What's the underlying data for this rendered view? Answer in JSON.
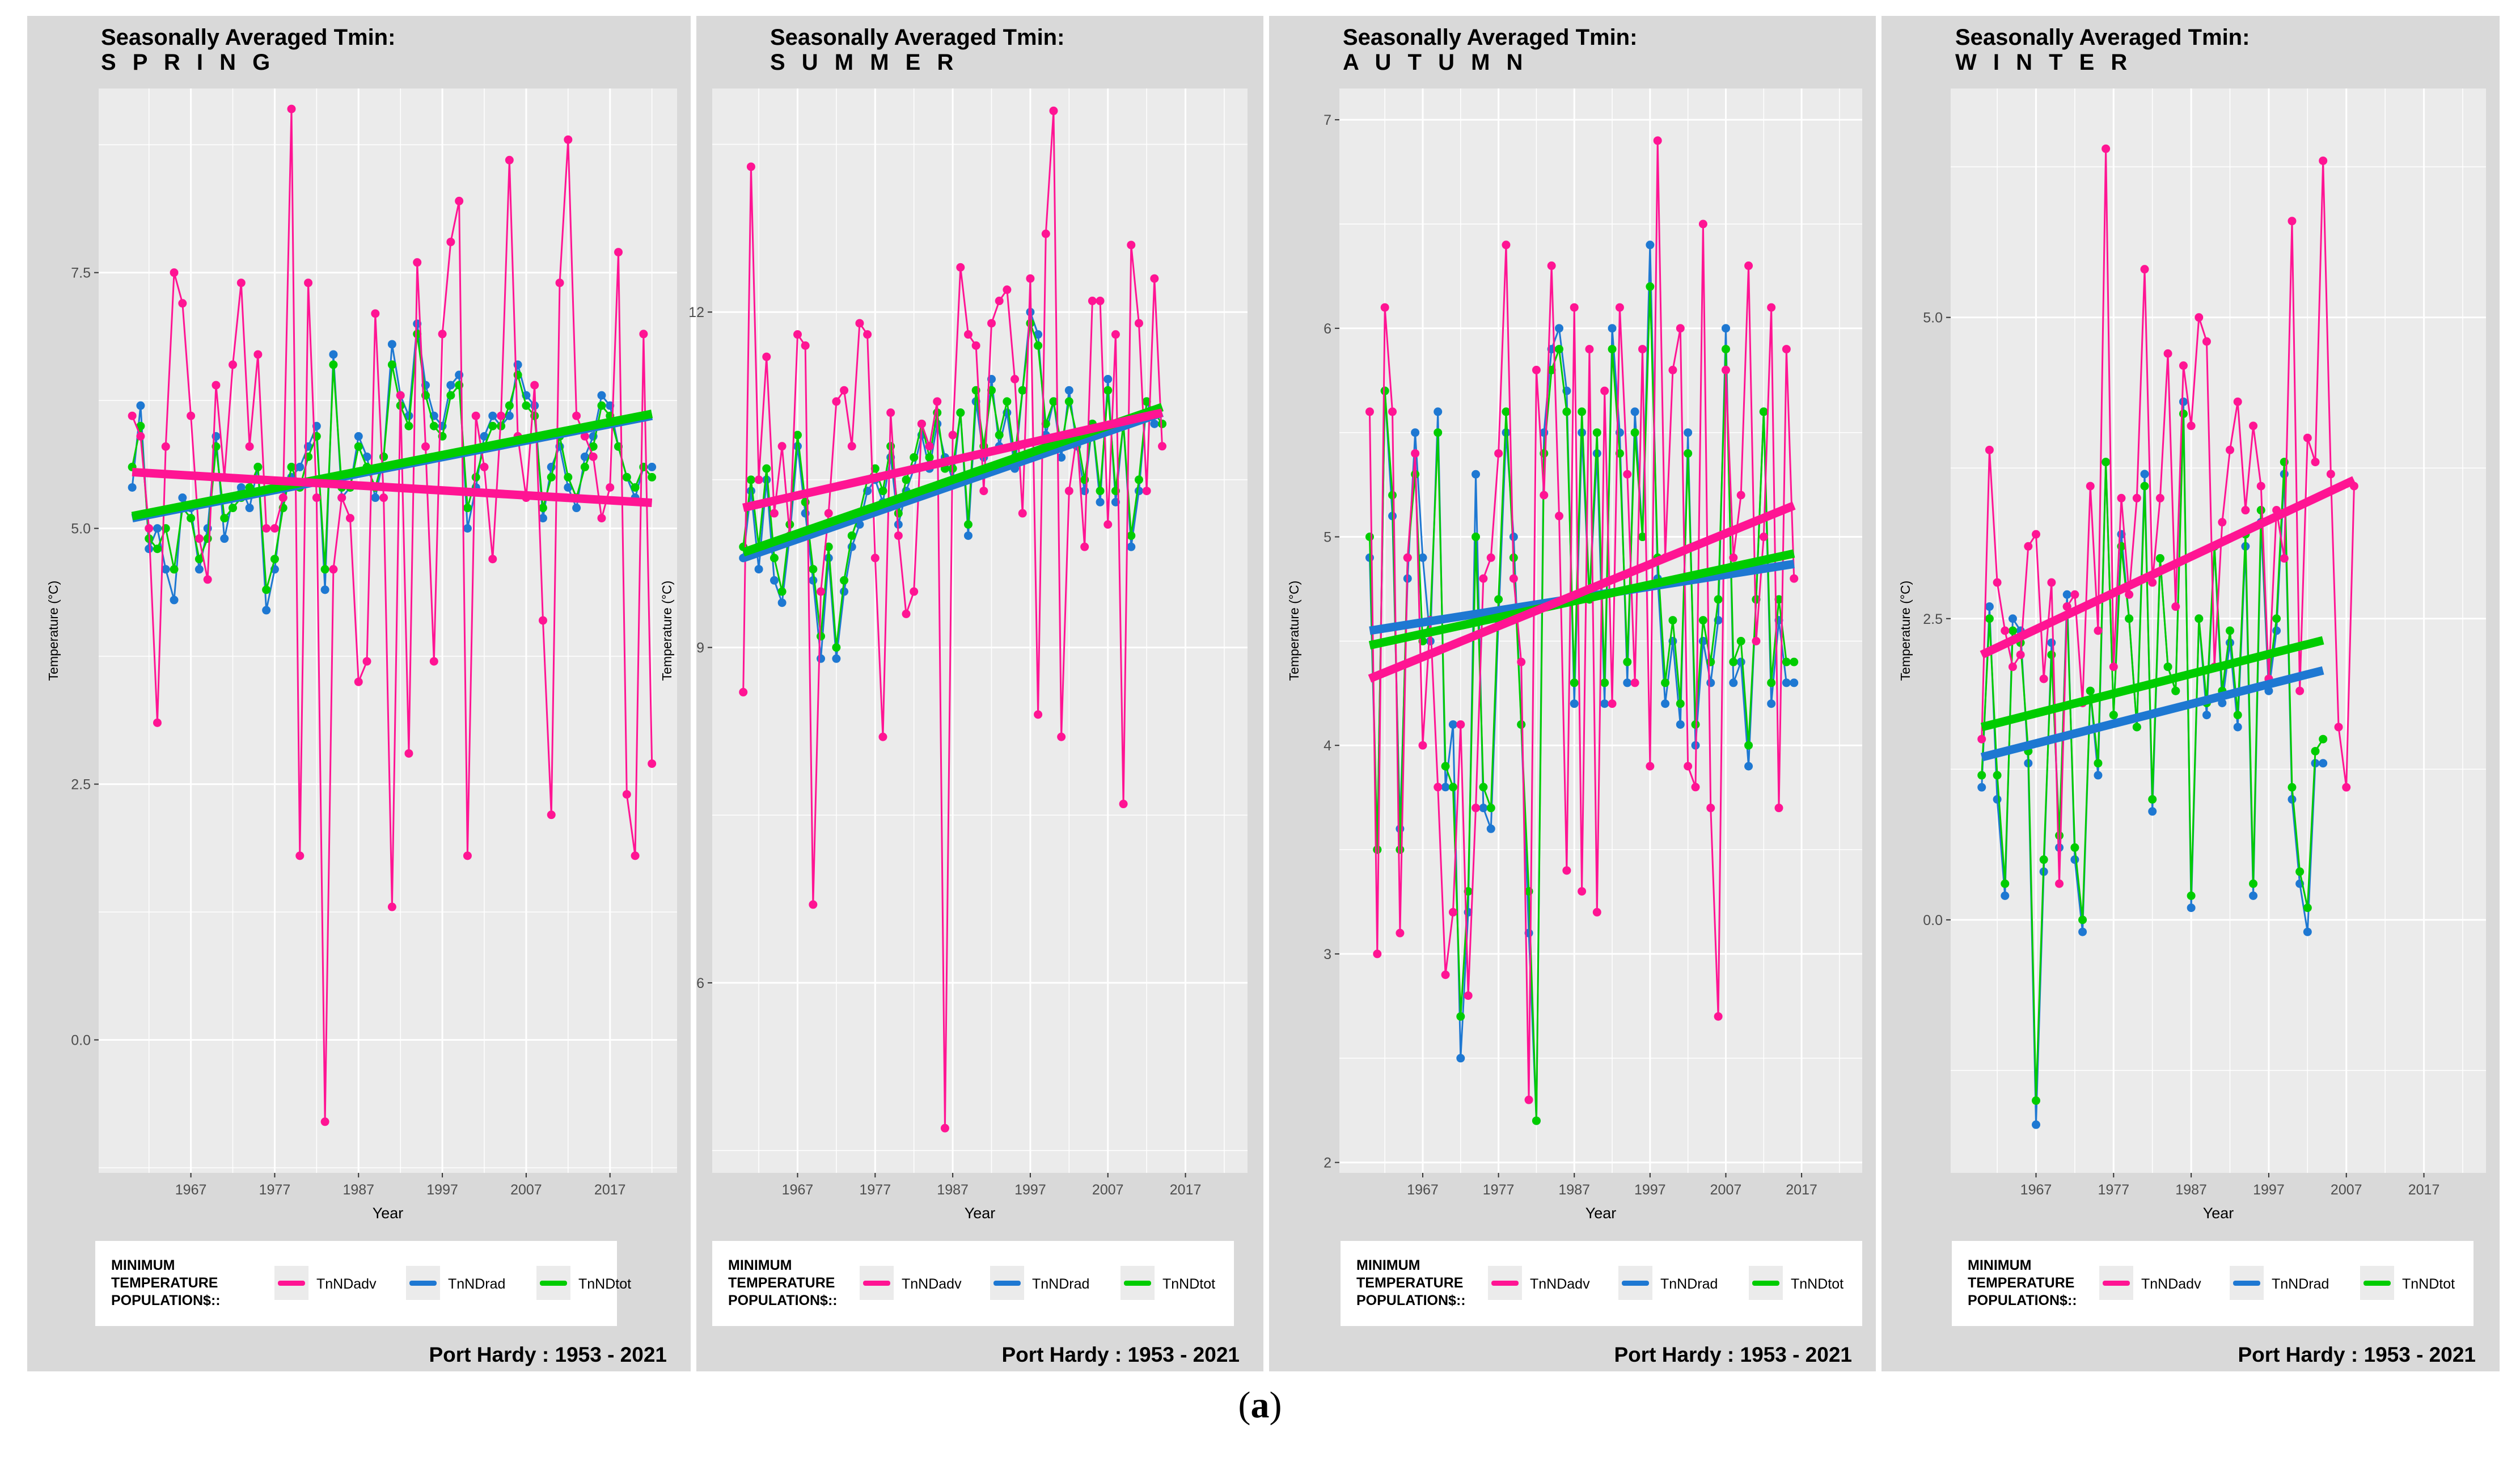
{
  "figure": {
    "sublabel_open": "(",
    "sublabel_letter": "a",
    "sublabel_close": ")"
  },
  "colors": {
    "advective": "#ff1493",
    "radiative": "#1e78d2",
    "total": "#00cc00"
  },
  "legend": {
    "title_lines": [
      "MINIMUM",
      "TEMPERATURE",
      "POPULATION$::"
    ],
    "entries": [
      "TnNDadv",
      "TnNDrad",
      "TnNDtot"
    ]
  },
  "chart_data": [
    {
      "type": "line",
      "title": "Seasonally Averaged Tmin:",
      "season": "S P R I N G",
      "xlabel": "Year",
      "ylabel": "Temperature (°C)",
      "caption": "Port Hardy :  1953 - 2021",
      "xlim": [
        1956,
        2025
      ],
      "ylim": [
        -1.3,
        9.3
      ],
      "x_ticks": [
        "1967",
        "1977",
        "1987",
        "1997",
        "2007",
        "2017"
      ],
      "y_ticks": [
        "0.0",
        "2.5",
        "5.0",
        "7.5"
      ],
      "x_start": 1960,
      "grid": true,
      "series": [
        {
          "name": "TnNDadv",
          "values": [
            6.1,
            5.9,
            5.0,
            3.1,
            5.8,
            7.5,
            7.2,
            6.1,
            4.9,
            4.5,
            6.4,
            5.5,
            6.6,
            7.4,
            5.8,
            6.7,
            5.0,
            5.0,
            5.3,
            9.1,
            1.8,
            7.4,
            5.3,
            -0.8,
            4.6,
            5.3,
            5.1,
            3.5,
            3.7,
            7.1,
            5.3,
            1.3,
            6.3,
            2.8,
            7.6,
            5.8,
            3.7,
            6.9,
            7.8,
            8.2,
            1.8,
            6.1,
            5.6,
            4.7,
            6.1,
            8.6,
            5.9,
            5.3,
            6.4,
            4.1,
            2.2,
            7.4,
            8.8,
            6.1,
            5.9,
            5.7,
            5.1,
            5.4,
            7.7,
            2.4,
            1.8,
            6.9,
            2.7
          ],
          "trend": [
            5.55,
            5.25
          ]
        },
        {
          "name": "TnNDrad",
          "values": [
            5.4,
            6.2,
            4.8,
            5.0,
            4.6,
            4.3,
            5.3,
            5.2,
            4.6,
            5.0,
            5.9,
            4.9,
            5.3,
            5.4,
            5.2,
            5.6,
            4.2,
            4.6,
            5.3,
            5.5,
            5.6,
            5.8,
            6.0,
            4.4,
            6.7,
            5.3,
            5.4,
            5.9,
            5.7,
            5.3,
            5.7,
            6.8,
            6.3,
            6.1,
            7.0,
            6.4,
            6.1,
            6.0,
            6.4,
            6.5,
            5.0,
            5.4,
            5.9,
            6.1,
            6.0,
            6.1,
            6.6,
            6.3,
            6.2,
            5.1,
            5.6,
            5.8,
            5.4,
            5.2,
            5.7,
            5.9,
            6.3,
            6.2,
            5.8,
            5.5,
            5.3,
            5.6,
            5.6
          ],
          "trend": [
            5.1,
            6.1
          ]
        },
        {
          "name": "TnNDtot",
          "values": [
            5.6,
            6.0,
            4.9,
            4.8,
            5.0,
            4.6,
            5.2,
            5.1,
            4.7,
            4.9,
            5.8,
            5.1,
            5.2,
            5.3,
            5.4,
            5.6,
            4.4,
            4.7,
            5.2,
            5.6,
            5.4,
            5.7,
            5.9,
            4.6,
            6.6,
            5.4,
            5.4,
            5.8,
            5.6,
            5.4,
            5.7,
            6.6,
            6.2,
            6.0,
            6.9,
            6.3,
            6.0,
            5.9,
            6.3,
            6.4,
            5.2,
            5.5,
            5.8,
            6.0,
            6.0,
            6.2,
            6.5,
            6.2,
            6.1,
            5.2,
            5.5,
            5.9,
            5.5,
            5.3,
            5.6,
            5.8,
            6.2,
            6.1,
            5.8,
            5.5,
            5.4,
            5.6,
            5.5
          ],
          "trend": [
            5.12,
            6.12
          ]
        }
      ]
    },
    {
      "type": "line",
      "title": "Seasonally Averaged Tmin:",
      "season": "S U M M E R",
      "xlabel": "Year",
      "ylabel": "Temperature (°C)",
      "caption": "Port Hardy :  1953 - 2021",
      "xlim": [
        1956,
        2025
      ],
      "ylim": [
        4.3,
        14.0
      ],
      "x_ticks": [
        "1967",
        "1977",
        "1987",
        "1997",
        "2007",
        "2017"
      ],
      "y_ticks": [
        "6",
        "9",
        "12"
      ],
      "x_start": 1960,
      "grid": true,
      "series": [
        {
          "name": "TnNDadv",
          "values": [
            8.6,
            13.3,
            10.5,
            11.6,
            10.2,
            10.8,
            10.0,
            11.8,
            11.7,
            6.7,
            9.5,
            10.2,
            11.2,
            11.3,
            10.8,
            11.9,
            11.8,
            9.8,
            8.2,
            11.1,
            10.0,
            9.3,
            9.5,
            11.0,
            10.8,
            11.2,
            4.7,
            10.9,
            12.4,
            11.8,
            11.7,
            10.4,
            11.9,
            12.1,
            12.2,
            11.4,
            10.2,
            12.3,
            8.4,
            12.7,
            13.8,
            8.2,
            10.4,
            10.9,
            9.9,
            12.1,
            12.1,
            10.1,
            11.8,
            7.6,
            12.6,
            11.9,
            10.4,
            12.3,
            10.8
          ],
          "trend": [
            10.25,
            11.1
          ]
        },
        {
          "name": "TnNDrad",
          "values": [
            9.8,
            10.4,
            9.7,
            10.5,
            9.6,
            9.4,
            10.0,
            10.8,
            10.2,
            9.6,
            8.9,
            9.8,
            8.9,
            9.5,
            9.9,
            10.1,
            10.4,
            10.5,
            10.3,
            10.7,
            10.1,
            10.4,
            10.6,
            10.9,
            10.6,
            11.0,
            10.7,
            10.5,
            11.1,
            10.0,
            11.2,
            10.7,
            11.4,
            10.8,
            11.1,
            10.6,
            11.3,
            12.0,
            11.8,
            10.9,
            11.2,
            10.7,
            11.3,
            10.8,
            10.4,
            11.0,
            10.3,
            11.4,
            10.3,
            11.0,
            9.9,
            10.4,
            11.2,
            11.0,
            11.0
          ],
          "trend": [
            9.8,
            11.1
          ]
        },
        {
          "name": "TnNDtot",
          "values": [
            9.9,
            10.5,
            9.9,
            10.6,
            9.8,
            9.5,
            10.1,
            10.9,
            10.3,
            9.7,
            9.1,
            9.9,
            9.0,
            9.6,
            10.0,
            10.2,
            10.5,
            10.6,
            10.4,
            10.8,
            10.2,
            10.5,
            10.7,
            11.0,
            10.7,
            11.1,
            10.6,
            10.6,
            11.1,
            10.1,
            11.3,
            10.8,
            11.3,
            10.9,
            11.2,
            10.7,
            11.3,
            11.9,
            11.7,
            11.0,
            11.2,
            10.8,
            11.2,
            10.9,
            10.5,
            11.0,
            10.4,
            11.3,
            10.4,
            11.0,
            10.0,
            10.5,
            11.2,
            11.1,
            11.0
          ],
          "trend": [
            9.85,
            11.15
          ]
        }
      ]
    },
    {
      "type": "line",
      "title": "Seasonally Averaged Tmin:",
      "season": "A U T U M N",
      "xlabel": "Year",
      "ylabel": "Temperature (°C)",
      "caption": "Port Hardy :  1953 - 2021",
      "xlim": [
        1956,
        2025
      ],
      "ylim": [
        1.95,
        7.15
      ],
      "x_ticks": [
        "1967",
        "1977",
        "1987",
        "1997",
        "2007",
        "2017"
      ],
      "y_ticks": [
        "2",
        "3",
        "4",
        "5",
        "6",
        "7"
      ],
      "x_start": 1960,
      "grid": true,
      "series": [
        {
          "name": "TnNDadv",
          "values": [
            5.6,
            3.0,
            6.1,
            5.6,
            3.1,
            4.9,
            5.4,
            4.0,
            4.6,
            3.8,
            2.9,
            3.2,
            4.1,
            2.8,
            3.7,
            4.8,
            4.9,
            5.4,
            6.4,
            4.8,
            4.4,
            2.3,
            5.8,
            5.2,
            6.3,
            5.1,
            3.4,
            6.1,
            3.3,
            5.9,
            3.2,
            5.7,
            4.2,
            6.1,
            5.3,
            4.3,
            5.9,
            3.9,
            6.9,
            4.9,
            5.8,
            6.0,
            3.9,
            3.8,
            6.5,
            3.7,
            2.7,
            5.8,
            4.9,
            5.2,
            6.3,
            4.5,
            5.0,
            6.1,
            3.7,
            5.9,
            4.8
          ],
          "trend": [
            4.32,
            5.15
          ]
        },
        {
          "name": "TnNDrad",
          "values": [
            4.9,
            3.5,
            5.7,
            5.1,
            3.6,
            4.8,
            5.5,
            4.9,
            4.5,
            5.6,
            3.8,
            4.1,
            2.5,
            3.2,
            5.3,
            3.7,
            3.6,
            4.6,
            5.5,
            5.0,
            4.1,
            3.1,
            2.2,
            5.5,
            5.9,
            6.0,
            5.7,
            4.2,
            5.5,
            4.7,
            5.4,
            4.2,
            6.0,
            5.5,
            4.3,
            5.6,
            5.0,
            6.4,
            4.8,
            4.2,
            4.5,
            4.1,
            5.5,
            4.0,
            4.5,
            4.3,
            4.6,
            6.0,
            4.3,
            4.4,
            3.9,
            4.7,
            5.6,
            4.2,
            4.6,
            4.3,
            4.3
          ],
          "trend": [
            4.55,
            4.87
          ]
        },
        {
          "name": "TnNDtot",
          "values": [
            5.0,
            3.5,
            5.7,
            5.2,
            3.5,
            4.9,
            5.3,
            4.5,
            4.6,
            5.5,
            3.9,
            3.8,
            2.7,
            3.3,
            5.0,
            3.8,
            3.7,
            4.7,
            5.6,
            4.9,
            4.1,
            3.3,
            2.2,
            5.4,
            5.8,
            5.9,
            5.6,
            4.3,
            5.6,
            4.7,
            5.5,
            4.3,
            5.9,
            5.4,
            4.4,
            5.5,
            5.0,
            6.2,
            4.9,
            4.3,
            4.6,
            4.2,
            5.4,
            4.1,
            4.6,
            4.4,
            4.7,
            5.9,
            4.4,
            4.5,
            4.0,
            4.7,
            5.6,
            4.3,
            4.7,
            4.4,
            4.4
          ],
          "trend": [
            4.48,
            4.92
          ]
        }
      ]
    },
    {
      "type": "line",
      "title": "Seasonally Averaged Tmin:",
      "season": "W I N T E R",
      "xlabel": "Year",
      "ylabel": "Temperature (°C)",
      "caption": "Port Hardy :  1953 - 2021",
      "xlim": [
        1956,
        2025
      ],
      "ylim": [
        -2.1,
        6.9
      ],
      "x_ticks": [
        "1967",
        "1977",
        "1987",
        "1997",
        "2007",
        "2017"
      ],
      "y_ticks": [
        "0.0",
        "2.5",
        "5.0"
      ],
      "x_start": 1960,
      "grid": true,
      "series": [
        {
          "name": "TnNDadv",
          "values": [
            1.5,
            3.9,
            2.8,
            2.4,
            2.1,
            2.2,
            3.1,
            3.2,
            2.0,
            2.8,
            0.3,
            2.6,
            2.7,
            1.8,
            3.6,
            2.4,
            6.4,
            2.1,
            3.5,
            2.7,
            3.5,
            5.4,
            2.8,
            3.5,
            4.7,
            2.6,
            4.6,
            4.1,
            5.0,
            4.8,
            2.1,
            3.3,
            3.9,
            4.3,
            3.4,
            4.1,
            3.6,
            2.0,
            3.4,
            3.0,
            5.8,
            1.9,
            4.0,
            3.8,
            6.3,
            3.7,
            1.6,
            1.1,
            3.6
          ],
          "trend": [
            2.2,
            3.65
          ]
        },
        {
          "name": "TnNDrad",
          "values": [
            1.1,
            2.6,
            1.0,
            0.2,
            2.5,
            2.4,
            1.3,
            -1.7,
            0.4,
            2.3,
            0.6,
            2.7,
            0.5,
            -0.1,
            1.9,
            1.2,
            3.8,
            1.7,
            3.2,
            2.5,
            1.6,
            3.7,
            0.9,
            3.0,
            2.1,
            1.9,
            4.3,
            0.1,
            2.5,
            1.7,
            3.1,
            1.8,
            2.3,
            1.6,
            3.1,
            0.2,
            3.3,
            1.9,
            2.4,
            3.7,
            1.0,
            0.3,
            -0.1,
            1.3,
            1.3
          ],
          "trend": [
            1.35,
            2.07
          ]
        },
        {
          "name": "TnNDtot",
          "values": [
            1.2,
            2.5,
            1.2,
            0.3,
            2.4,
            2.3,
            1.4,
            -1.5,
            0.5,
            2.2,
            0.7,
            2.6,
            0.6,
            0.0,
            1.9,
            1.3,
            3.8,
            1.7,
            3.1,
            2.5,
            1.6,
            3.6,
            1.0,
            3.0,
            2.1,
            1.9,
            4.2,
            0.2,
            2.5,
            1.8,
            3.1,
            1.9,
            2.4,
            1.7,
            3.2,
            0.3,
            3.4,
            2.0,
            2.5,
            3.8,
            1.1,
            0.4,
            0.1,
            1.4,
            1.5
          ],
          "trend": [
            1.6,
            2.32
          ]
        }
      ]
    }
  ]
}
